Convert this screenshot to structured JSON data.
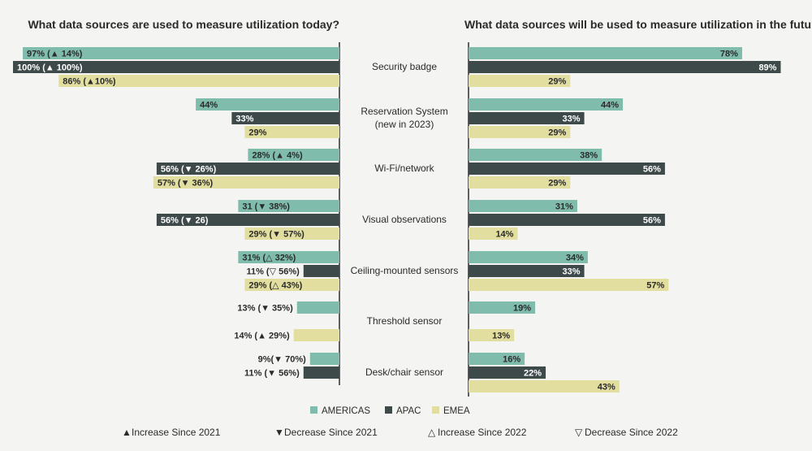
{
  "chart_data": [
    {
      "type": "bar",
      "orientation": "horizontal",
      "direction": "leftward",
      "title": "What data sources are used to measure utilization today?",
      "categories": [
        "Security badge",
        "Reservation System (new in 2023)",
        "Wi-Fi/network",
        "Visual observations",
        "Ceiling-mounted sensors",
        "Threshold sensor",
        "Desk/chair sensor"
      ],
      "series": [
        {
          "name": "AMERICAS",
          "color": "#7fbcac",
          "values": [
            97,
            44,
            28,
            31,
            31,
            13,
            9
          ],
          "labels": [
            "97% (▲ 14%)",
            "44%",
            "28% (▲ 4%)",
            "31 (▼ 38%)",
            "31% (△ 32%)",
            "13% (▼ 35%)",
            "9%(▼ 70%)"
          ]
        },
        {
          "name": "APAC",
          "color": "#3e4a4a",
          "values": [
            100,
            33,
            56,
            56,
            11,
            null,
            11
          ],
          "labels": [
            "100% (▲ 100%)",
            "33%",
            "56% (▼ 26%)",
            "56% (▼ 26)",
            "11% (▽ 56%)",
            null,
            "11% (▼ 56%)"
          ]
        },
        {
          "name": "EMEA",
          "color": "#e1dea0",
          "values": [
            86,
            29,
            57,
            29,
            29,
            14,
            null
          ],
          "labels": [
            "86% (▲10%)",
            "29%",
            "57% (▼ 36%)",
            "29% (▼ 57%)",
            "29% (△ 43%)",
            "14% (▲ 29%)",
            null
          ]
        }
      ]
    },
    {
      "type": "bar",
      "orientation": "horizontal",
      "direction": "rightward",
      "title": "What data sources will be used to measure utilization in the future?",
      "categories": [
        "Security badge",
        "Reservation System (new in 2023)",
        "Wi-Fi/network",
        "Visual observations",
        "Ceiling-mounted sensors",
        "Threshold sensor",
        "Desk/chair sensor"
      ],
      "series": [
        {
          "name": "AMERICAS",
          "color": "#7fbcac",
          "values": [
            78,
            44,
            38,
            31,
            34,
            19,
            16
          ],
          "labels": [
            "78%",
            "44%",
            "38%",
            "31%",
            "34%",
            "19%",
            "16%"
          ]
        },
        {
          "name": "APAC",
          "color": "#3e4a4a",
          "values": [
            89,
            33,
            56,
            56,
            33,
            null,
            22
          ],
          "labels": [
            "89%",
            "33%",
            "56%",
            "56%",
            "33%",
            null,
            "22%"
          ]
        },
        {
          "name": "EMEA",
          "color": "#e1dea0",
          "values": [
            29,
            29,
            29,
            14,
            57,
            13,
            43
          ],
          "labels": [
            "29%",
            "29%",
            "29%",
            "14%",
            "57%",
            "13%",
            "43%"
          ]
        }
      ]
    }
  ],
  "category_labels": [
    [
      "Security badge"
    ],
    [
      "Reservation System",
      "(new in 2023)"
    ],
    [
      "Wi-Fi/network"
    ],
    [
      "Visual observations"
    ],
    [
      "Ceiling-mounted sensors"
    ],
    [
      "Threshold sensor"
    ],
    [
      "Desk/chair sensor"
    ]
  ],
  "legend": [
    {
      "name": "AMERICAS",
      "color": "#7fbcac"
    },
    {
      "name": "APAC",
      "color": "#3e4a4a"
    },
    {
      "name": "EMEA",
      "color": "#e1dea0"
    }
  ],
  "key": [
    {
      "symbol": "▲",
      "text": "Increase Since 2021"
    },
    {
      "symbol": "▼",
      "text": "Decrease Since 2021"
    },
    {
      "symbol": "△",
      "text": "Increase Since 2022"
    },
    {
      "symbol": "▽",
      "text": "Decrease Since 2022"
    }
  ],
  "colors": {
    "text": "#2b2b2b",
    "axis": "#222222",
    "inside_text_dark_bg": "#ffffff"
  }
}
